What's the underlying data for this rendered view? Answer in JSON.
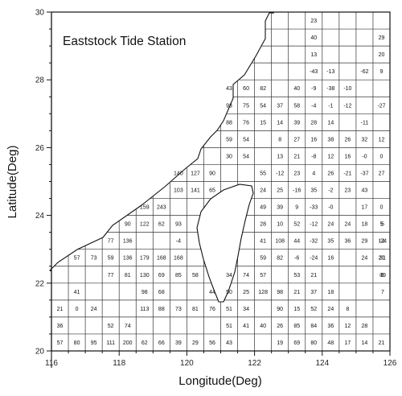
{
  "title": "Eaststock Tide Station",
  "x_axis": {
    "label": "Longitude(Deg)",
    "min": 116,
    "max": 126,
    "ticks": [
      116,
      118,
      120,
      122,
      124,
      126
    ],
    "minor_step": 0.5
  },
  "y_axis": {
    "label": "Latitude(Deg)",
    "min": 20,
    "max": 30,
    "ticks": [
      20,
      22,
      24,
      26,
      28,
      30
    ],
    "minor_step": 0.5
  },
  "grid": {
    "cell_size_deg": 0.5
  },
  "colors": {
    "land": "#ffffff",
    "lines": "#111111"
  },
  "cells": [
    {
      "lon": 123.5,
      "lat": 29.75,
      "text": "23"
    },
    {
      "lon": 123.5,
      "lat": 29.25,
      "text": "40"
    },
    {
      "lon": 125.5,
      "lat": 29.25,
      "text": "29"
    },
    {
      "lon": 123.5,
      "lat": 28.75,
      "text": "13"
    },
    {
      "lon": 125.5,
      "lat": 28.75,
      "text": "20"
    },
    {
      "lon": 123.5,
      "lat": 28.25,
      "text": "-43"
    },
    {
      "lon": 124,
      "lat": 28.25,
      "text": "-13"
    },
    {
      "lon": 125,
      "lat": 28.25,
      "text": "-62"
    },
    {
      "lon": 125.5,
      "lat": 28.25,
      "text": "9"
    },
    {
      "lon": 121,
      "lat": 27.75,
      "text": "43"
    },
    {
      "lon": 121.5,
      "lat": 27.75,
      "text": "60"
    },
    {
      "lon": 122,
      "lat": 27.75,
      "text": "82"
    },
    {
      "lon": 123,
      "lat": 27.75,
      "text": "40"
    },
    {
      "lon": 123.5,
      "lat": 27.75,
      "text": "-9"
    },
    {
      "lon": 124,
      "lat": 27.75,
      "text": "-38"
    },
    {
      "lon": 124.5,
      "lat": 27.75,
      "text": "-10"
    },
    {
      "lon": 121,
      "lat": 27.25,
      "text": "93"
    },
    {
      "lon": 121.5,
      "lat": 27.25,
      "text": "75"
    },
    {
      "lon": 122,
      "lat": 27.25,
      "text": "54"
    },
    {
      "lon": 122.5,
      "lat": 27.25,
      "text": "37"
    },
    {
      "lon": 123,
      "lat": 27.25,
      "text": "58"
    },
    {
      "lon": 123.5,
      "lat": 27.25,
      "text": "-4"
    },
    {
      "lon": 124,
      "lat": 27.25,
      "text": "-1"
    },
    {
      "lon": 124.5,
      "lat": 27.25,
      "text": "-12"
    },
    {
      "lon": 125.5,
      "lat": 27.25,
      "text": "-27"
    },
    {
      "lon": 121,
      "lat": 26.75,
      "text": "88"
    },
    {
      "lon": 121.5,
      "lat": 26.75,
      "text": "76"
    },
    {
      "lon": 122,
      "lat": 26.75,
      "text": "15"
    },
    {
      "lon": 122.5,
      "lat": 26.75,
      "text": "14"
    },
    {
      "lon": 123,
      "lat": 26.75,
      "text": "39"
    },
    {
      "lon": 123.5,
      "lat": 26.75,
      "text": "28"
    },
    {
      "lon": 124,
      "lat": 26.75,
      "text": "14"
    },
    {
      "lon": 125,
      "lat": 26.75,
      "text": "-11"
    },
    {
      "lon": 121,
      "lat": 26.25,
      "text": "59"
    },
    {
      "lon": 121.5,
      "lat": 26.25,
      "text": "54"
    },
    {
      "lon": 122.5,
      "lat": 26.25,
      "text": "8"
    },
    {
      "lon": 123,
      "lat": 26.25,
      "text": "27"
    },
    {
      "lon": 123.5,
      "lat": 26.25,
      "text": "16"
    },
    {
      "lon": 124,
      "lat": 26.25,
      "text": "38"
    },
    {
      "lon": 124.5,
      "lat": 26.25,
      "text": "26"
    },
    {
      "lon": 125,
      "lat": 26.25,
      "text": "32"
    },
    {
      "lon": 125.5,
      "lat": 26.25,
      "text": "12"
    },
    {
      "lon": 121,
      "lat": 25.75,
      "text": "30"
    },
    {
      "lon": 121.5,
      "lat": 25.75,
      "text": "54"
    },
    {
      "lon": 122.5,
      "lat": 25.75,
      "text": "13"
    },
    {
      "lon": 123,
      "lat": 25.75,
      "text": "21"
    },
    {
      "lon": 123.5,
      "lat": 25.75,
      "text": "-8"
    },
    {
      "lon": 124,
      "lat": 25.75,
      "text": "12"
    },
    {
      "lon": 124.5,
      "lat": 25.75,
      "text": "16"
    },
    {
      "lon": 125,
      "lat": 25.75,
      "text": "-0"
    },
    {
      "lon": 125.5,
      "lat": 25.75,
      "text": "0"
    },
    {
      "lon": 119.5,
      "lat": 25.25,
      "text": "140"
    },
    {
      "lon": 120,
      "lat": 25.25,
      "text": "127"
    },
    {
      "lon": 120.5,
      "lat": 25.25,
      "text": "90"
    },
    {
      "lon": 122,
      "lat": 25.25,
      "text": "55"
    },
    {
      "lon": 122.5,
      "lat": 25.25,
      "text": "-12"
    },
    {
      "lon": 123,
      "lat": 25.25,
      "text": "23"
    },
    {
      "lon": 123.5,
      "lat": 25.25,
      "text": "4"
    },
    {
      "lon": 124,
      "lat": 25.25,
      "text": "26"
    },
    {
      "lon": 124.5,
      "lat": 25.25,
      "text": "-21"
    },
    {
      "lon": 125,
      "lat": 25.25,
      "text": "-37"
    },
    {
      "lon": 125.5,
      "lat": 25.25,
      "text": "27"
    },
    {
      "lon": 119.5,
      "lat": 24.75,
      "text": "103"
    },
    {
      "lon": 120,
      "lat": 24.75,
      "text": "141"
    },
    {
      "lon": 120.5,
      "lat": 24.75,
      "text": "65"
    },
    {
      "lon": 122,
      "lat": 24.75,
      "text": "24"
    },
    {
      "lon": 122.5,
      "lat": 24.75,
      "text": "25"
    },
    {
      "lon": 123,
      "lat": 24.75,
      "text": "-16"
    },
    {
      "lon": 123.5,
      "lat": 24.75,
      "text": "35"
    },
    {
      "lon": 124,
      "lat": 24.75,
      "text": "-2"
    },
    {
      "lon": 124.5,
      "lat": 24.75,
      "text": "23"
    },
    {
      "lon": 125,
      "lat": 24.75,
      "text": "43"
    },
    {
      "lon": 118.5,
      "lat": 24.25,
      "text": "159"
    },
    {
      "lon": 119,
      "lat": 24.25,
      "text": "243"
    },
    {
      "lon": 122,
      "lat": 24.25,
      "text": "49"
    },
    {
      "lon": 122.5,
      "lat": 24.25,
      "text": "39"
    },
    {
      "lon": 123,
      "lat": 24.25,
      "text": "9"
    },
    {
      "lon": 123.5,
      "lat": 24.25,
      "text": "-33"
    },
    {
      "lon": 124,
      "lat": 24.25,
      "text": "-0"
    },
    {
      "lon": 125,
      "lat": 24.25,
      "text": "17"
    },
    {
      "lon": 125.5,
      "lat": 24.25,
      "text": "0"
    },
    {
      "lon": 118,
      "lat": 23.75,
      "text": "90"
    },
    {
      "lon": 118.5,
      "lat": 23.75,
      "text": "122"
    },
    {
      "lon": 119,
      "lat": 23.75,
      "text": "62"
    },
    {
      "lon": 119.5,
      "lat": 23.75,
      "text": "93"
    },
    {
      "lon": 122,
      "lat": 23.75,
      "text": "28"
    },
    {
      "lon": 122.5,
      "lat": 23.75,
      "text": "10"
    },
    {
      "lon": 123,
      "lat": 23.75,
      "text": "52"
    },
    {
      "lon": 123.5,
      "lat": 23.75,
      "text": "-12"
    },
    {
      "lon": 124,
      "lat": 23.75,
      "text": "24"
    },
    {
      "lon": 124.5,
      "lat": 23.75,
      "text": "24"
    },
    {
      "lon": 125,
      "lat": 23.75,
      "text": "18"
    },
    {
      "lon": 125.5,
      "lat": 23.75,
      "text": "5"
    },
    {
      "lon": 126,
      "lat": 23.75,
      "text": "5"
    },
    {
      "lon": 117.5,
      "lat": 23.25,
      "text": "77"
    },
    {
      "lon": 118,
      "lat": 23.25,
      "text": "136"
    },
    {
      "lon": 119.5,
      "lat": 23.25,
      "text": "-4"
    },
    {
      "lon": 122,
      "lat": 23.25,
      "text": "41"
    },
    {
      "lon": 122.5,
      "lat": 23.25,
      "text": "108"
    },
    {
      "lon": 123,
      "lat": 23.25,
      "text": "44"
    },
    {
      "lon": 123.5,
      "lat": 23.25,
      "text": "-32"
    },
    {
      "lon": 124,
      "lat": 23.25,
      "text": "35"
    },
    {
      "lon": 124.5,
      "lat": 23.25,
      "text": "36"
    },
    {
      "lon": 125,
      "lat": 23.25,
      "text": "29"
    },
    {
      "lon": 125.5,
      "lat": 23.25,
      "text": "14"
    },
    {
      "lon": 126,
      "lat": 23.25,
      "text": "-24"
    },
    {
      "lon": 116.5,
      "lat": 22.75,
      "text": "57"
    },
    {
      "lon": 117,
      "lat": 22.75,
      "text": "73"
    },
    {
      "lon": 117.5,
      "lat": 22.75,
      "text": "59"
    },
    {
      "lon": 118,
      "lat": 22.75,
      "text": "136"
    },
    {
      "lon": 118.5,
      "lat": 22.75,
      "text": "179"
    },
    {
      "lon": 119,
      "lat": 22.75,
      "text": "168"
    },
    {
      "lon": 119.5,
      "lat": 22.75,
      "text": "168"
    },
    {
      "lon": 122,
      "lat": 22.75,
      "text": "59"
    },
    {
      "lon": 122.5,
      "lat": 22.75,
      "text": "82"
    },
    {
      "lon": 123,
      "lat": 22.75,
      "text": "-6"
    },
    {
      "lon": 123.5,
      "lat": 22.75,
      "text": "-24"
    },
    {
      "lon": 124,
      "lat": 22.75,
      "text": "16"
    },
    {
      "lon": 125,
      "lat": 22.75,
      "text": "24"
    },
    {
      "lon": 125.5,
      "lat": 22.75,
      "text": "20"
    },
    {
      "lon": 126,
      "lat": 22.75,
      "text": "31"
    },
    {
      "lon": 117.5,
      "lat": 22.25,
      "text": "77"
    },
    {
      "lon": 118,
      "lat": 22.25,
      "text": "81"
    },
    {
      "lon": 118.5,
      "lat": 22.25,
      "text": "130"
    },
    {
      "lon": 119,
      "lat": 22.25,
      "text": "69"
    },
    {
      "lon": 119.5,
      "lat": 22.25,
      "text": "85"
    },
    {
      "lon": 120,
      "lat": 22.25,
      "text": "58"
    },
    {
      "lon": 121,
      "lat": 22.25,
      "text": "34"
    },
    {
      "lon": 121.5,
      "lat": 22.25,
      "text": "74"
    },
    {
      "lon": 122,
      "lat": 22.25,
      "text": "57"
    },
    {
      "lon": 123,
      "lat": 22.25,
      "text": "53"
    },
    {
      "lon": 123.5,
      "lat": 22.25,
      "text": "21"
    },
    {
      "lon": 125.5,
      "lat": 22.25,
      "text": "-6"
    },
    {
      "lon": 126,
      "lat": 22.25,
      "text": "39"
    },
    {
      "lon": 116.5,
      "lat": 21.75,
      "text": "41"
    },
    {
      "lon": 118.5,
      "lat": 21.75,
      "text": "98"
    },
    {
      "lon": 119,
      "lat": 21.75,
      "text": "68"
    },
    {
      "lon": 120.5,
      "lat": 21.75,
      "text": "44"
    },
    {
      "lon": 121,
      "lat": 21.75,
      "text": "50"
    },
    {
      "lon": 121.5,
      "lat": 21.75,
      "text": "25"
    },
    {
      "lon": 122,
      "lat": 21.75,
      "text": "128"
    },
    {
      "lon": 122.5,
      "lat": 21.75,
      "text": "98"
    },
    {
      "lon": 123,
      "lat": 21.75,
      "text": "21"
    },
    {
      "lon": 123.5,
      "lat": 21.75,
      "text": "37"
    },
    {
      "lon": 124,
      "lat": 21.75,
      "text": "18"
    },
    {
      "lon": 126,
      "lat": 21.75,
      "text": "7"
    },
    {
      "lon": 116,
      "lat": 21.25,
      "text": "21"
    },
    {
      "lon": 116.5,
      "lat": 21.25,
      "text": "0"
    },
    {
      "lon": 117,
      "lat": 21.25,
      "text": "24"
    },
    {
      "lon": 118.5,
      "lat": 21.25,
      "text": "113"
    },
    {
      "lon": 119,
      "lat": 21.25,
      "text": "88"
    },
    {
      "lon": 119.5,
      "lat": 21.25,
      "text": "73"
    },
    {
      "lon": 120,
      "lat": 21.25,
      "text": "81"
    },
    {
      "lon": 120.5,
      "lat": 21.25,
      "text": "76"
    },
    {
      "lon": 121,
      "lat": 21.25,
      "text": "51"
    },
    {
      "lon": 121.5,
      "lat": 21.25,
      "text": "34"
    },
    {
      "lon": 122.5,
      "lat": 21.25,
      "text": "90"
    },
    {
      "lon": 123,
      "lat": 21.25,
      "text": "15"
    },
    {
      "lon": 123.5,
      "lat": 21.25,
      "text": "52"
    },
    {
      "lon": 124,
      "lat": 21.25,
      "text": "24"
    },
    {
      "lon": 124.5,
      "lat": 21.25,
      "text": "8"
    },
    {
      "lon": 116,
      "lat": 20.75,
      "text": "36"
    },
    {
      "lon": 117.5,
      "lat": 20.75,
      "text": "52"
    },
    {
      "lon": 118,
      "lat": 20.75,
      "text": "74"
    },
    {
      "lon": 121,
      "lat": 20.75,
      "text": "51"
    },
    {
      "lon": 121.5,
      "lat": 20.75,
      "text": "41"
    },
    {
      "lon": 122,
      "lat": 20.75,
      "text": "40"
    },
    {
      "lon": 122.5,
      "lat": 20.75,
      "text": "26"
    },
    {
      "lon": 123,
      "lat": 20.75,
      "text": "85"
    },
    {
      "lon": 123.5,
      "lat": 20.75,
      "text": "84"
    },
    {
      "lon": 124,
      "lat": 20.75,
      "text": "36"
    },
    {
      "lon": 124.5,
      "lat": 20.75,
      "text": "12"
    },
    {
      "lon": 125,
      "lat": 20.75,
      "text": "28"
    },
    {
      "lon": 116,
      "lat": 20.25,
      "text": "57"
    },
    {
      "lon": 116.5,
      "lat": 20.25,
      "text": "80"
    },
    {
      "lon": 117,
      "lat": 20.25,
      "text": "95"
    },
    {
      "lon": 117.5,
      "lat": 20.25,
      "text": "111"
    },
    {
      "lon": 118,
      "lat": 20.25,
      "text": "200"
    },
    {
      "lon": 118.5,
      "lat": 20.25,
      "text": "62"
    },
    {
      "lon": 119,
      "lat": 20.25,
      "text": "66"
    },
    {
      "lon": 119.5,
      "lat": 20.25,
      "text": "39"
    },
    {
      "lon": 120,
      "lat": 20.25,
      "text": "29"
    },
    {
      "lon": 120.5,
      "lat": 20.25,
      "text": "56"
    },
    {
      "lon": 121,
      "lat": 20.25,
      "text": "43"
    },
    {
      "lon": 122.5,
      "lat": 20.25,
      "text": "19"
    },
    {
      "lon": 123,
      "lat": 20.25,
      "text": "69"
    },
    {
      "lon": 123.5,
      "lat": 20.25,
      "text": "80"
    },
    {
      "lon": 124,
      "lat": 20.25,
      "text": "48"
    },
    {
      "lon": 124.5,
      "lat": 20.25,
      "text": "17"
    },
    {
      "lon": 125,
      "lat": 20.25,
      "text": "14"
    },
    {
      "lon": 125.5,
      "lat": 20.25,
      "text": "21"
    }
  ]
}
